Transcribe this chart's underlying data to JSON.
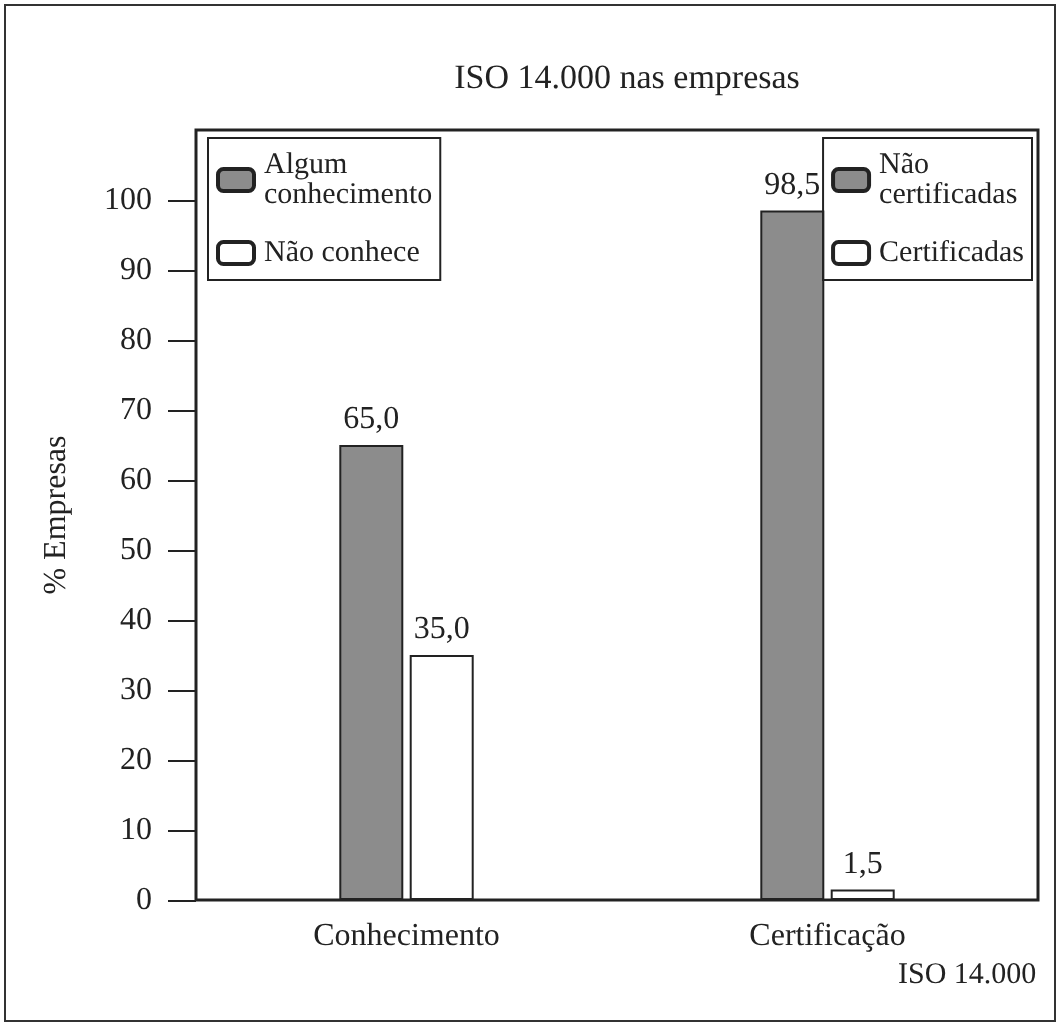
{
  "chart_data": {
    "type": "bar",
    "title": "ISO 14.000 nas empresas",
    "xlabel": "ISO 14.000",
    "ylabel": "% Empresas",
    "categories": [
      "Conhecimento",
      "Certificação"
    ],
    "series": [
      {
        "name": "Algum conhecimento",
        "color": "#8c8c8c",
        "values": [
          65.0,
          null
        ],
        "value_labels": [
          "65,0",
          null
        ]
      },
      {
        "name": "Não conhece",
        "color": "#ffffff",
        "values": [
          35.0,
          null
        ],
        "value_labels": [
          "35,0",
          null
        ]
      },
      {
        "name": "Não certificadas",
        "color": "#8c8c8c",
        "values": [
          null,
          98.5
        ],
        "value_labels": [
          null,
          "98,5"
        ]
      },
      {
        "name": "Certificadas",
        "color": "#ffffff",
        "values": [
          null,
          1.5
        ],
        "value_labels": [
          null,
          "1,5"
        ]
      }
    ],
    "ylim": [
      0,
      110
    ],
    "yticks": [
      0,
      10,
      20,
      30,
      40,
      50,
      60,
      70,
      80,
      90,
      100
    ],
    "grid": false,
    "legend": "top"
  }
}
